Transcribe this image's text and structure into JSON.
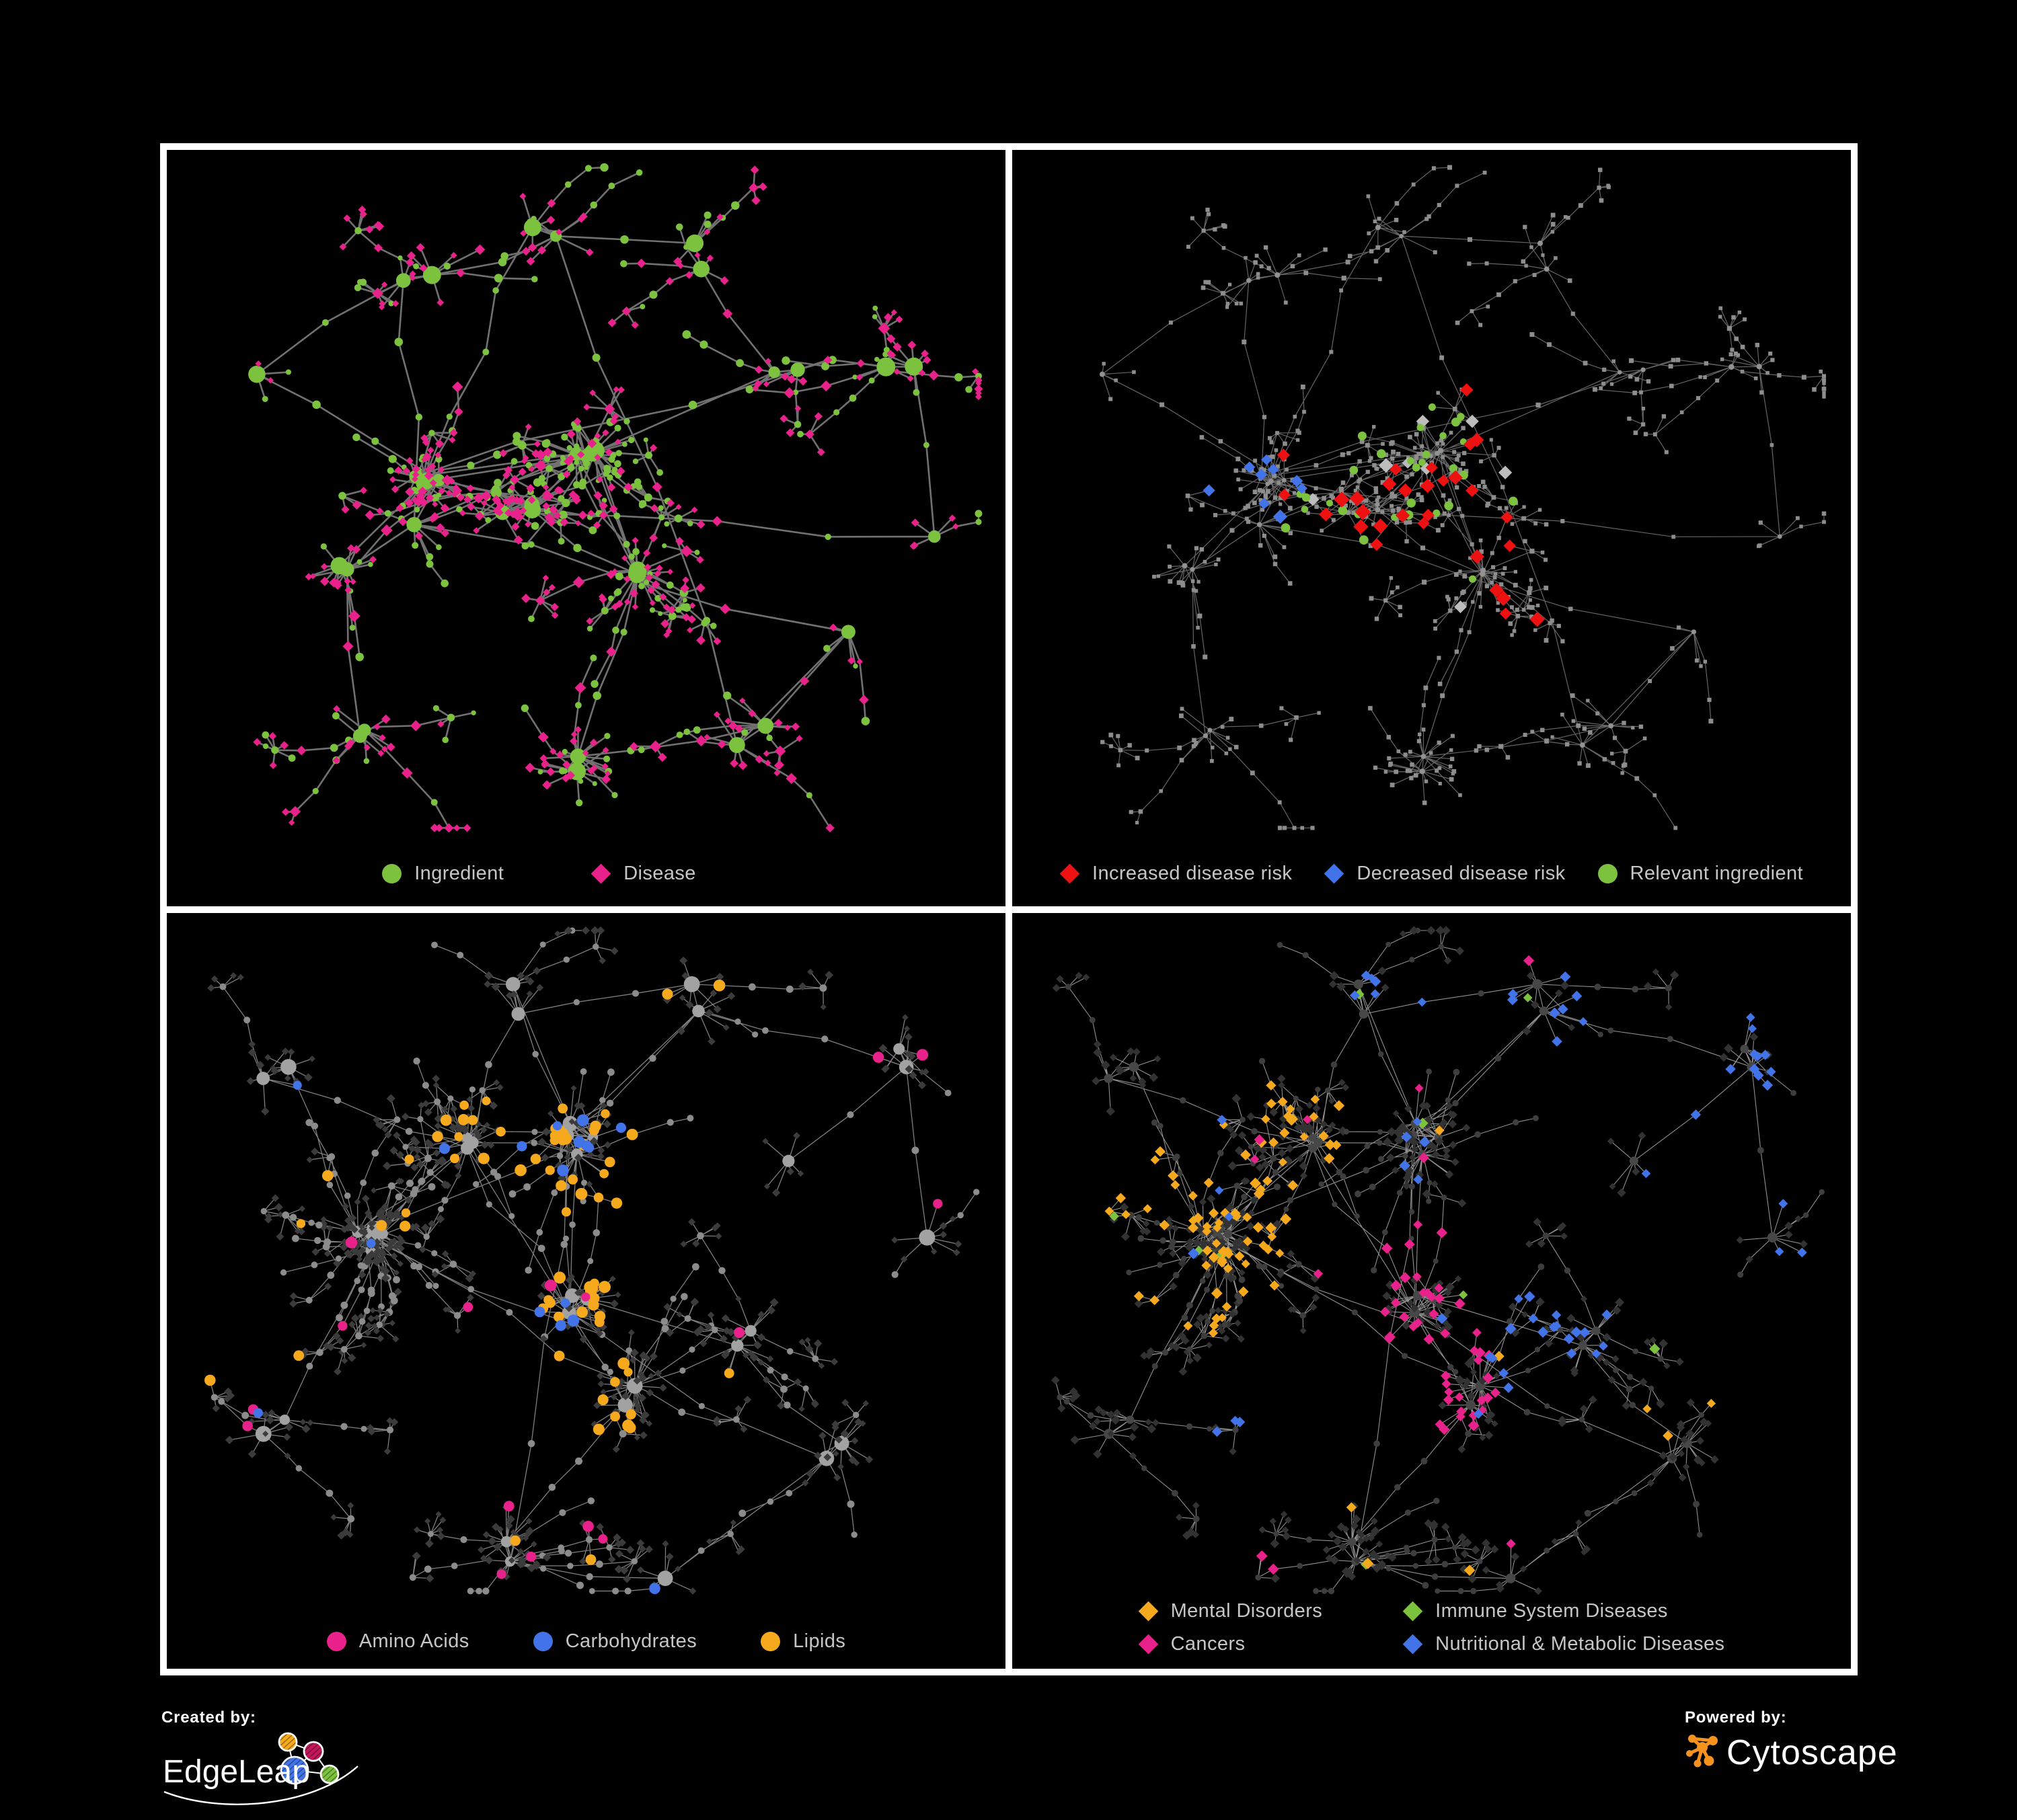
{
  "colors": {
    "green": "#7CC23E",
    "magenta": "#E9218A",
    "red": "#EE1111",
    "blue": "#4273E8",
    "silver": "#BDBDBD",
    "orange": "#F6A91C",
    "background": "#000000",
    "panel_border": "#FFFFFF",
    "legend_text": "#C6C6C6"
  },
  "footer": {
    "created_by": "Created by:",
    "edgeleap": "EdgeLeap",
    "powered_by": "Powered by:",
    "cytoscape": "Cytoscape"
  },
  "panels": [
    {
      "name": "ingredient-disease",
      "layout": "net1",
      "style": "bipartite",
      "legend_class": "g-wide",
      "legend": [
        {
          "shape": "circle",
          "color": "green",
          "label": "Ingredient"
        },
        {
          "shape": "diamond",
          "color": "magenta",
          "label": "Disease"
        }
      ]
    },
    {
      "name": "disease-risk",
      "layout": "net1",
      "style": "risk",
      "legend_class": "g-tight",
      "legend": [
        {
          "shape": "diamond",
          "color": "red",
          "label": "Increased disease risk"
        },
        {
          "shape": "diamond",
          "color": "blue",
          "label": "Decreased disease risk"
        },
        {
          "shape": "circle",
          "color": "green",
          "label": "Relevant ingredient"
        }
      ]
    },
    {
      "name": "macronutrients",
      "layout": "net2",
      "style": "nutrients",
      "legend_class": "g-mid",
      "legend": [
        {
          "shape": "circle",
          "color": "magenta",
          "label": "Amino Acids"
        },
        {
          "shape": "circle",
          "color": "blue",
          "label": "Carbohydrates"
        },
        {
          "shape": "circle",
          "color": "orange",
          "label": "Lipids"
        }
      ]
    },
    {
      "name": "disease-categories",
      "layout": "net2",
      "style": "categories",
      "legend_class": "cols2",
      "legend": [
        {
          "shape": "diamond",
          "color": "orange",
          "label": "Mental Disorders"
        },
        {
          "shape": "diamond",
          "color": "green",
          "label": "Immune System Diseases"
        },
        {
          "shape": "diamond",
          "color": "magenta",
          "label": "Cancers"
        },
        {
          "shape": "diamond",
          "color": "blue",
          "label": "Nutritional & Metabolic Diseases"
        }
      ]
    }
  ],
  "networks": {
    "net1": {
      "seed": 20,
      "clusters": [
        [
          0.3,
          0.46,
          5,
          0.055,
          8,
          15
        ],
        [
          0.42,
          0.46,
          4,
          0.045,
          8,
          14
        ],
        [
          0.5,
          0.4,
          4,
          0.028,
          10,
          16
        ],
        [
          0.57,
          0.57,
          2,
          0.025,
          12,
          18
        ],
        [
          0.22,
          0.57,
          2,
          0.04,
          7,
          12
        ],
        [
          0.28,
          0.16,
          2,
          0.05,
          4,
          8
        ],
        [
          0.44,
          0.11,
          2,
          0.045,
          4,
          8
        ],
        [
          0.63,
          0.14,
          2,
          0.04,
          4,
          8
        ],
        [
          0.74,
          0.3,
          2,
          0.05,
          5,
          9
        ],
        [
          0.88,
          0.3,
          2,
          0.04,
          5,
          9
        ],
        [
          0.92,
          0.5,
          1,
          0.03,
          5,
          8
        ],
        [
          0.5,
          0.8,
          2,
          0.035,
          12,
          18
        ],
        [
          0.24,
          0.78,
          2,
          0.045,
          5,
          9
        ],
        [
          0.68,
          0.76,
          2,
          0.04,
          6,
          10
        ],
        [
          0.79,
          0.64,
          1,
          0.03,
          5,
          8
        ],
        [
          0.12,
          0.3,
          1,
          0.03,
          4,
          7
        ]
      ]
    },
    "net2": {
      "seed": 77,
      "clusters": [
        [
          0.26,
          0.42,
          6,
          0.055,
          10,
          18
        ],
        [
          0.36,
          0.3,
          3,
          0.045,
          8,
          13
        ],
        [
          0.49,
          0.3,
          4,
          0.035,
          10,
          16
        ],
        [
          0.47,
          0.52,
          4,
          0.05,
          8,
          14
        ],
        [
          0.54,
          0.64,
          2,
          0.03,
          16,
          24
        ],
        [
          0.66,
          0.55,
          2,
          0.04,
          8,
          13
        ],
        [
          0.13,
          0.22,
          2,
          0.05,
          5,
          9
        ],
        [
          0.4,
          0.1,
          2,
          0.05,
          4,
          8
        ],
        [
          0.63,
          0.12,
          2,
          0.04,
          5,
          9
        ],
        [
          0.85,
          0.2,
          2,
          0.05,
          5,
          9
        ],
        [
          0.9,
          0.42,
          1,
          0.03,
          5,
          9
        ],
        [
          0.78,
          0.72,
          2,
          0.04,
          6,
          10
        ],
        [
          0.42,
          0.85,
          2,
          0.04,
          12,
          18
        ],
        [
          0.13,
          0.68,
          2,
          0.04,
          5,
          9
        ],
        [
          0.6,
          0.88,
          1,
          0.03,
          6,
          10
        ],
        [
          0.74,
          0.33,
          1,
          0.03,
          5,
          8
        ]
      ]
    }
  },
  "styles": {
    "bipartite": {
      "edge": {
        "color": "#7b7b7b",
        "width": 2.6
      },
      "hub": {
        "shape": "circle",
        "color": "green",
        "r": [
          8,
          14
        ]
      },
      "mid": {
        "shape": "circle",
        "color": "green",
        "r": [
          4.5,
          6.5
        ]
      },
      "midAlt": {
        "shape": "diamond",
        "color": "magenta",
        "r": [
          6.5,
          9
        ]
      },
      "midAltP": 0.25,
      "blobCluster": 2,
      "blobSecondaryP": 0.82,
      "leaf": {
        "primary": {
          "shape": "diamond",
          "color": "magenta",
          "r": [
            4.5,
            7
          ]
        },
        "secondaryP": 0.22,
        "secondary": {
          "shape": "circle",
          "color": "green",
          "r": [
            3.5,
            5.5
          ]
        }
      },
      "overlays": []
    },
    "risk": {
      "edge": {
        "color": "#6e6e6e",
        "width": 1.2
      },
      "hub": {
        "shape": "circle",
        "color": "#929292",
        "r": [
          3.2,
          4.2
        ]
      },
      "mid": {
        "shape": "square",
        "color": "#8d8d8d",
        "r": [
          2.8,
          3.6
        ]
      },
      "leaf": {
        "primary": {
          "shape": "square",
          "color": "#8d8d8d",
          "r": [
            2.6,
            3.4
          ]
        }
      },
      "overlays": [
        {
          "name": "increased-risk",
          "shape": "diamond",
          "color": "red",
          "r": [
            9,
            12
          ],
          "count": 30,
          "scatter": 0,
          "regions": [
            [
              0.47,
              0.45,
              0.16
            ],
            [
              0.4,
              0.38,
              0.08
            ],
            [
              0.46,
              0.25,
              0.06
            ],
            [
              0.78,
              0.77,
              0.07
            ],
            [
              0.93,
              0.22,
              0.04
            ],
            [
              0.63,
              0.6,
              0.06
            ]
          ]
        },
        {
          "name": "relevant-ingredient",
          "shape": "circle",
          "color": "green",
          "r": [
            5,
            7
          ],
          "count": 30,
          "scatter": 0,
          "regions": [
            [
              0.45,
              0.42,
              0.18
            ],
            [
              0.1,
              0.28,
              0.05
            ],
            [
              0.72,
              0.42,
              0.05
            ],
            [
              0.62,
              0.66,
              0.06
            ],
            [
              0.3,
              0.3,
              0.06
            ]
          ]
        },
        {
          "name": "decreased-risk",
          "shape": "diamond",
          "color": "blue",
          "r": [
            8,
            11
          ],
          "count": 9,
          "scatter": 0,
          "regions": [
            [
              0.29,
              0.44,
              0.06
            ],
            [
              0.83,
              0.32,
              0.05
            ]
          ]
        },
        {
          "name": "no-effect",
          "shape": "diamond",
          "color": "silver",
          "r": [
            8,
            11
          ],
          "count": 8,
          "scatter": 0,
          "regions": [
            [
              0.5,
              0.46,
              0.15
            ],
            [
              0.35,
              0.4,
              0.06
            ]
          ]
        }
      ]
    },
    "nutrients": {
      "edge": {
        "color": "#8a8a8a",
        "width": 1.3
      },
      "hub": {
        "shape": "circle",
        "color": "#a2a2a2",
        "r": [
          7.5,
          12
        ]
      },
      "mid": {
        "shape": "circle",
        "color": "#8c8c8c",
        "r": [
          4.5,
          5.5
        ]
      },
      "leaf": {
        "primary": {
          "shape": "diamond",
          "color": "#3b3b3b",
          "r": [
            4.5,
            6.5
          ]
        }
      },
      "overlays": [
        {
          "name": "lipids",
          "shape": "circle",
          "color": "orange",
          "r": [
            6.5,
            9
          ],
          "count": 58,
          "scatter": 14,
          "regions": [
            [
              0.49,
              0.33,
              0.09
            ],
            [
              0.45,
              0.52,
              0.07
            ],
            [
              0.54,
              0.64,
              0.05
            ],
            [
              0.37,
              0.29,
              0.05
            ]
          ]
        },
        {
          "name": "carbohydrates",
          "shape": "circle",
          "color": "blue",
          "r": [
            6.5,
            9
          ],
          "count": 13,
          "scatter": 4,
          "regions": [
            [
              0.49,
              0.31,
              0.08
            ],
            [
              0.46,
              0.53,
              0.05
            ],
            [
              0.13,
              0.25,
              0.05
            ]
          ]
        },
        {
          "name": "amino-acids",
          "shape": "circle",
          "color": "magenta",
          "r": [
            6.5,
            9
          ],
          "count": 8,
          "scatter": 8,
          "regions": [
            [
              0.12,
              0.55,
              0.12
            ],
            [
              0.42,
              0.86,
              0.12
            ],
            [
              0.86,
              0.45,
              0.1
            ],
            [
              0.3,
              0.12,
              0.1
            ],
            [
              0.64,
              0.78,
              0.1
            ],
            [
              0.05,
              0.35,
              0.08
            ]
          ]
        }
      ]
    },
    "categories": {
      "edge": {
        "color": "#9c9c9c",
        "width": 1.1
      },
      "hub": {
        "shape": "circle",
        "color": "#474747",
        "r": [
          6,
          7.5
        ]
      },
      "mid": {
        "shape": "circle",
        "color": "#3e3e3e",
        "r": [
          4,
          5
        ]
      },
      "leaf": {
        "primary": {
          "shape": "diamond",
          "color": "#323232",
          "r": [
            5,
            7
          ]
        }
      },
      "overlays": [
        {
          "name": "mental-disorders",
          "shape": "diamond",
          "color": "orange",
          "r": [
            6.5,
            8.5
          ],
          "count": 80,
          "scatter": 10,
          "regions": [
            [
              0.24,
              0.42,
              0.13
            ],
            [
              0.34,
              0.29,
              0.07
            ],
            [
              0.12,
              0.3,
              0.05
            ]
          ]
        },
        {
          "name": "cancers",
          "shape": "diamond",
          "color": "magenta",
          "r": [
            6.5,
            8.5
          ],
          "count": 48,
          "scatter": 8,
          "regions": [
            [
              0.47,
              0.52,
              0.11
            ],
            [
              0.54,
              0.64,
              0.07
            ],
            [
              0.88,
              0.3,
              0.06
            ],
            [
              0.3,
              0.9,
              0.05
            ]
          ]
        },
        {
          "name": "nutritional-metabolic",
          "shape": "diamond",
          "color": "blue",
          "r": [
            6.5,
            8.5
          ],
          "count": 50,
          "scatter": 14,
          "regions": [
            [
              0.62,
              0.55,
              0.09
            ],
            [
              0.85,
              0.2,
              0.11
            ],
            [
              0.63,
              0.12,
              0.07
            ],
            [
              0.9,
              0.42,
              0.06
            ],
            [
              0.3,
              0.65,
              0.06
            ],
            [
              0.44,
              0.12,
              0.05
            ]
          ]
        },
        {
          "name": "immune-system",
          "shape": "diamond",
          "color": "green",
          "r": [
            6.5,
            8.5
          ],
          "count": 0,
          "scatter": 9,
          "regions": []
        }
      ]
    }
  }
}
